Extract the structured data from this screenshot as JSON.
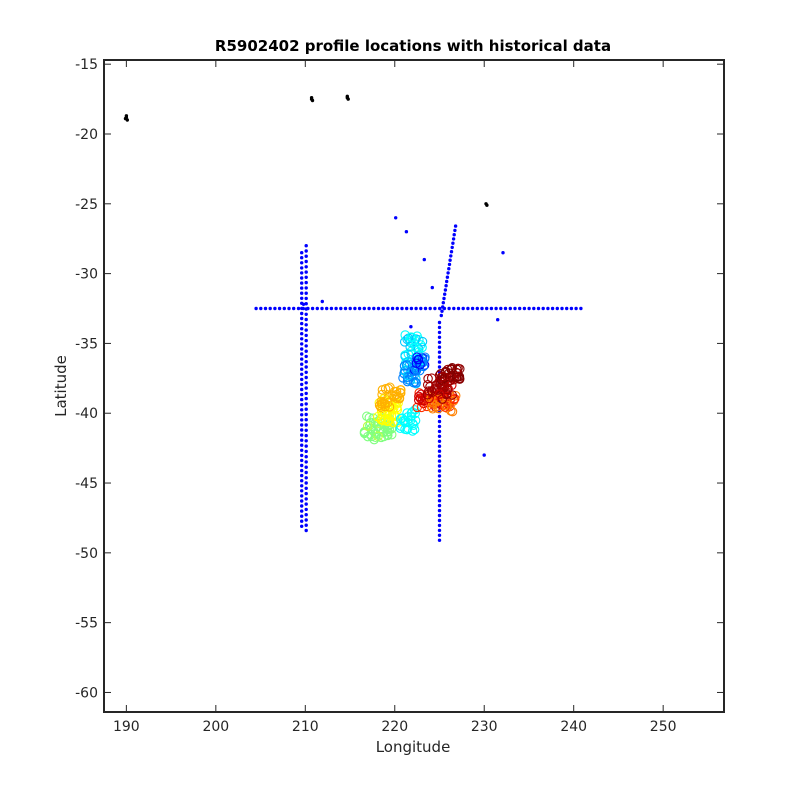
{
  "chart_data": {
    "type": "scatter",
    "title": "R5902402 profile locations with historical data",
    "xlabel": "Longitude",
    "ylabel": "Latitude",
    "xlim": [
      187.5,
      256.8
    ],
    "ylim": [
      -61.4,
      -14.7
    ],
    "xticks": [
      190,
      200,
      210,
      220,
      230,
      240,
      250
    ],
    "yticks": [
      -15,
      -20,
      -25,
      -30,
      -35,
      -40,
      -45,
      -50,
      -55,
      -60
    ],
    "grid": false,
    "legend": "none",
    "colors": {
      "axes": "#262626",
      "historical_blue": "#0000ff",
      "historical_black": "#000000",
      "profile_colormap": [
        "#000090",
        "#0000ff",
        "#0080ff",
        "#00c8ff",
        "#00ffff",
        "#80ff80",
        "#c0ff40",
        "#ffff00",
        "#ffb000",
        "#ff8000",
        "#ff3000",
        "#d00000",
        "#a00000",
        "#800000"
      ]
    },
    "series": [
      {
        "marker": "dot",
        "color": "#000000",
        "points": [
          [
            190.0,
            -18.8
          ],
          [
            190.1,
            -19.0
          ],
          [
            189.9,
            -18.9
          ],
          [
            190.0,
            -18.7
          ],
          [
            210.7,
            -17.5
          ],
          [
            210.8,
            -17.6
          ],
          [
            210.7,
            -17.4
          ],
          [
            214.7,
            -17.3
          ],
          [
            214.8,
            -17.5
          ],
          [
            214.7,
            -17.4
          ],
          [
            230.3,
            -25.1
          ],
          [
            230.2,
            -25.0
          ]
        ]
      },
      {
        "marker": "dot",
        "color": "#0000ff",
        "lines": [
          {
            "from": [
              204.5,
              -32.5
            ],
            "to": [
              240.8,
              -32.5
            ],
            "n": 70
          },
          {
            "from": [
              209.6,
              -28.5
            ],
            "to": [
              209.6,
              -48.1
            ],
            "n": 55
          },
          {
            "from": [
              210.1,
              -28.0
            ],
            "to": [
              210.1,
              -48.4
            ],
            "n": 55
          },
          {
            "from": [
              225.0,
              -33.5
            ],
            "to": [
              225.0,
              -49.1
            ],
            "n": 45
          },
          {
            "from": [
              225.2,
              -33.0
            ],
            "to": [
              226.8,
              -26.6
            ],
            "n": 22
          }
        ],
        "points": [
          [
            220.1,
            -26.0
          ],
          [
            221.3,
            -27.0
          ],
          [
            223.3,
            -29.0
          ],
          [
            224.2,
            -31.0
          ],
          [
            232.1,
            -28.5
          ],
          [
            211.9,
            -32.0
          ],
          [
            231.5,
            -33.3
          ],
          [
            221.8,
            -33.8
          ],
          [
            230.0,
            -43.0
          ],
          [
            209.8,
            -32.2
          ]
        ]
      },
      {
        "marker": "circle",
        "colormap": "jet",
        "note_groups": [
          {
            "center": [
              218.2,
              -41.0
            ],
            "spread": [
              1.6,
              0.9
            ],
            "c": 0.4,
            "n": 55
          },
          {
            "center": [
              219.2,
              -39.8
            ],
            "spread": [
              1.2,
              0.9
            ],
            "c": 0.55,
            "n": 40
          },
          {
            "center": [
              219.5,
              -38.8
            ],
            "spread": [
              1.2,
              0.8
            ],
            "c": 0.62,
            "n": 30
          },
          {
            "center": [
              221.5,
              -40.5
            ],
            "spread": [
              0.9,
              0.8
            ],
            "c": 0.3,
            "n": 25
          },
          {
            "center": [
              222.1,
              -35.5
            ],
            "spread": [
              1.0,
              1.2
            ],
            "c": 0.28,
            "n": 40
          },
          {
            "center": [
              221.7,
              -37.2
            ],
            "spread": [
              0.8,
              0.7
            ],
            "c": 0.18,
            "n": 30
          },
          {
            "center": [
              222.8,
              -36.4
            ],
            "spread": [
              0.7,
              0.6
            ],
            "c": 0.12,
            "n": 20
          },
          {
            "center": [
              224.5,
              -39.0
            ],
            "spread": [
              2.0,
              0.6
            ],
            "c": 0.82,
            "n": 40
          },
          {
            "center": [
              225.4,
              -39.3
            ],
            "spread": [
              1.5,
              0.6
            ],
            "c": 0.72,
            "n": 25
          },
          {
            "center": [
              225.0,
              -38.2
            ],
            "spread": [
              1.5,
              0.8
            ],
            "c": 0.9,
            "n": 35
          },
          {
            "center": [
              226.2,
              -37.3
            ],
            "spread": [
              1.2,
              0.6
            ],
            "c": 0.97,
            "n": 35
          }
        ]
      }
    ]
  }
}
